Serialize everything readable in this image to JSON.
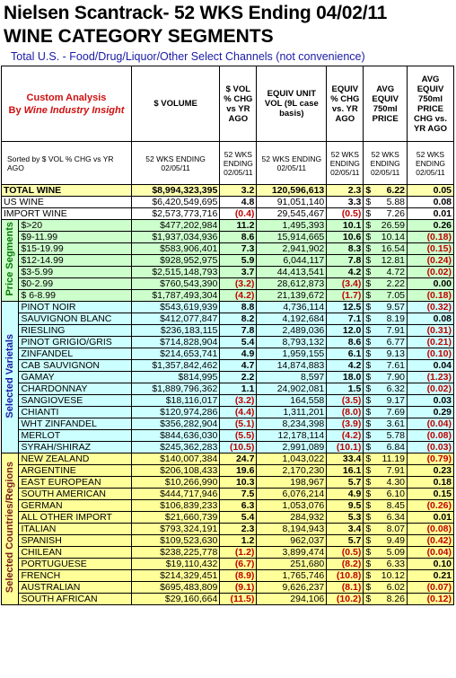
{
  "title": "Nielsen Scantrack- 52 WKS Ending 04/02/11",
  "subtitle": "WINE CATEGORY SEGMENTS",
  "channels": "Total U.S. - Food/Drug/Liquor/Other Select Channels (not convenience)",
  "header": {
    "custom_line1": "Custom Analysis",
    "custom_line2": "By",
    "custom_brand": "Wine Industry Insight",
    "col_volume": "$ VOLUME",
    "col_pct_chg": "$ VOL % CHG vs YR AGO",
    "col_unit_vol": "EQUIV UNIT VOL (9L case basis)",
    "col_unit_chg": "EQUIV % CHG vs. YR AGO",
    "col_price": "AVG EQUIV 750ml PRICE",
    "col_price_chg": "AVG EQUIV 750ml PRICE CHG vs. YR AGO",
    "sort_note": "Sorted by $ VOL % CHG vs YR AGO",
    "period_a": "52 WKS ENDING 02/05/11",
    "period_b": "52 WKS ENDING 02/05/11",
    "period_c": "52 WKS ENDING 02/05/11",
    "period_d": "52 WKS ENDING 02/05/11",
    "period_e": "52 WKS ENDING 02/05/11",
    "period_f": "52 WKS ENDING 02/05/11",
    "dollar": "$"
  },
  "sections": {
    "price": "Price Segments",
    "varietal": "Selected Varietals",
    "country": "Selected Countries/Regions"
  },
  "total": {
    "name": "TOTAL  WINE",
    "vol": "$8,994,323,395",
    "pct": "3.2",
    "unit": "120,596,613",
    "uchg": "2.3",
    "price": "6.22",
    "pchg": "0.05"
  },
  "domestic": [
    {
      "name": "US  WINE",
      "vol": "$6,420,549,695",
      "pct": "4.8",
      "unit": "91,051,140",
      "uchg": "3.3",
      "price": "5.88",
      "pchg": "0.08"
    },
    {
      "name": "IMPORT  WINE",
      "vol": "$2,573,773,716",
      "pct": "(0.4)",
      "unit": "29,545,467",
      "uchg": "(0.5)",
      "price": "7.26",
      "pchg": "0.01"
    }
  ],
  "price_rows": [
    {
      "name": "$>20",
      "vol": "$477,202,984",
      "pct": "11.2",
      "unit": "1,495,393",
      "uchg": "10.1",
      "price": "26.59",
      "pchg": "0.26"
    },
    {
      "name": "$9-11.99",
      "vol": "$1,937,034,936",
      "pct": "8.6",
      "unit": "15,914,665",
      "uchg": "10.6",
      "price": "10.14",
      "pchg": "(0.18)"
    },
    {
      "name": "$15-19.99",
      "vol": "$583,906,401",
      "pct": "7.3",
      "unit": "2,941,902",
      "uchg": "8.3",
      "price": "16.54",
      "pchg": "(0.15)"
    },
    {
      "name": "$12-14.99",
      "vol": "$928,952,975",
      "pct": "5.9",
      "unit": "6,044,117",
      "uchg": "7.8",
      "price": "12.81",
      "pchg": "(0.24)"
    },
    {
      "name": "$3-5.99",
      "vol": "$2,515,148,793",
      "pct": "3.7",
      "unit": "44,413,541",
      "uchg": "4.2",
      "price": "4.72",
      "pchg": "(0.02)"
    },
    {
      "name": "$0-2.99",
      "vol": "$760,543,390",
      "pct": "(3.2)",
      "unit": "28,612,873",
      "uchg": "(3.4)",
      "price": "2.22",
      "pchg": "0.00"
    },
    {
      "name": "$ 6-8.99",
      "vol": "$1,787,493,304",
      "pct": "(4.2)",
      "unit": "21,139,672",
      "uchg": "(1.7)",
      "price": "7.05",
      "pchg": "(0.18)"
    }
  ],
  "varietal_rows": [
    {
      "name": "PINOT NOIR",
      "vol": "$543,619,939",
      "pct": "8.8",
      "unit": "4,736,114",
      "uchg": "12.5",
      "price": "9.57",
      "pchg": "(0.32)"
    },
    {
      "name": "SAUVIGNON BLANC",
      "vol": "$412,077,847",
      "pct": "8.2",
      "unit": "4,192,684",
      "uchg": "7.1",
      "price": "8.19",
      "pchg": "0.08"
    },
    {
      "name": "RIESLING",
      "vol": "$236,183,115",
      "pct": "7.8",
      "unit": "2,489,036",
      "uchg": "12.0",
      "price": "7.91",
      "pchg": "(0.31)"
    },
    {
      "name": "PINOT GRIGIO/GRIS",
      "vol": "$714,828,904",
      "pct": "5.4",
      "unit": "8,793,132",
      "uchg": "8.6",
      "price": "6.77",
      "pchg": "(0.21)"
    },
    {
      "name": "ZINFANDEL",
      "vol": "$214,653,741",
      "pct": "4.9",
      "unit": "1,959,155",
      "uchg": "6.1",
      "price": "9.13",
      "pchg": "(0.10)"
    },
    {
      "name": "CAB SAUVIGNON",
      "vol": "$1,357,842,462",
      "pct": "4.7",
      "unit": "14,874,883",
      "uchg": "4.2",
      "price": "7.61",
      "pchg": "0.04"
    },
    {
      "name": "GAMAY",
      "vol": "$814,995",
      "pct": "2.2",
      "unit": "8,597",
      "uchg": "18.0",
      "price": "7.90",
      "pchg": "(1.23)"
    },
    {
      "name": "CHARDONNAY",
      "vol": "$1,889,796,362",
      "pct": "1.1",
      "unit": "24,902,081",
      "uchg": "1.5",
      "price": "6.32",
      "pchg": "(0.02)"
    },
    {
      "name": "SANGIOVESE",
      "vol": "$18,116,017",
      "pct": "(3.2)",
      "unit": "164,558",
      "uchg": "(3.5)",
      "price": "9.17",
      "pchg": "0.03"
    },
    {
      "name": "CHIANTI",
      "vol": "$120,974,286",
      "pct": "(4.4)",
      "unit": "1,311,201",
      "uchg": "(8.0)",
      "price": "7.69",
      "pchg": "0.29"
    },
    {
      "name": "WHT ZINFANDEL",
      "vol": "$356,282,904",
      "pct": "(5.1)",
      "unit": "8,234,398",
      "uchg": "(3.9)",
      "price": "3.61",
      "pchg": "(0.04)"
    },
    {
      "name": "MERLOT",
      "vol": "$844,636,030",
      "pct": "(5.5)",
      "unit": "12,178,114",
      "uchg": "(4.2)",
      "price": "5.78",
      "pchg": "(0.08)"
    },
    {
      "name": "SYRAH/SHIRAZ",
      "vol": "$245,362,283",
      "pct": "(10.5)",
      "unit": "2,991,089",
      "uchg": "(10.1)",
      "price": "6.84",
      "pchg": "(0.03)"
    }
  ],
  "country_rows": [
    {
      "name": "NEW ZEALAND",
      "vol": "$140,007,384",
      "pct": "24.7",
      "unit": "1,043,022",
      "uchg": "33.4",
      "price": "11.19",
      "pchg": "(0.79)"
    },
    {
      "name": "ARGENTINE",
      "vol": "$206,108,433",
      "pct": "19.6",
      "unit": "2,170,230",
      "uchg": "16.1",
      "price": "7.91",
      "pchg": "0.23"
    },
    {
      "name": "EAST EUROPEAN",
      "vol": "$10,266,990",
      "pct": "10.3",
      "unit": "198,967",
      "uchg": "5.7",
      "price": "4.30",
      "pchg": "0.18"
    },
    {
      "name": "SOUTH AMERICAN",
      "vol": "$444,717,946",
      "pct": "7.5",
      "unit": "6,076,214",
      "uchg": "4.9",
      "price": "6.10",
      "pchg": "0.15"
    },
    {
      "name": "GERMAN",
      "vol": "$106,839,233",
      "pct": "6.3",
      "unit": "1,053,076",
      "uchg": "9.5",
      "price": "8.45",
      "pchg": "(0.26)"
    },
    {
      "name": "ALL OTHER IMPORT",
      "vol": "$21,660,739",
      "pct": "5.4",
      "unit": "284,932",
      "uchg": "5.3",
      "price": "6.34",
      "pchg": "0.01"
    },
    {
      "name": "ITALIAN",
      "vol": "$793,324,191",
      "pct": "2.3",
      "unit": "8,194,943",
      "uchg": "3.4",
      "price": "8.07",
      "pchg": "(0.08)"
    },
    {
      "name": "SPANISH",
      "vol": "$109,523,630",
      "pct": "1.2",
      "unit": "962,037",
      "uchg": "5.7",
      "price": "9.49",
      "pchg": "(0.42)"
    },
    {
      "name": "CHILEAN",
      "vol": "$238,225,778",
      "pct": "(1.2)",
      "unit": "3,899,474",
      "uchg": "(0.5)",
      "price": "5.09",
      "pchg": "(0.04)"
    },
    {
      "name": "PORTUGUESE",
      "vol": "$19,110,432",
      "pct": "(6.7)",
      "unit": "251,680",
      "uchg": "(8.2)",
      "price": "6.33",
      "pchg": "0.10"
    },
    {
      "name": "FRENCH",
      "vol": "$214,329,451",
      "pct": "(8.9)",
      "unit": "1,765,746",
      "uchg": "(10.8)",
      "price": "10.12",
      "pchg": "0.21"
    },
    {
      "name": "AUSTRALIAN",
      "vol": "$695,483,809",
      "pct": "(9.1)",
      "unit": "9,626,237",
      "uchg": "(8.1)",
      "price": "6.02",
      "pchg": "(0.07)"
    },
    {
      "name": "SOUTH AFRICAN",
      "vol": "$29,160,664",
      "pct": "(11.5)",
      "unit": "294,106",
      "uchg": "(10.2)",
      "price": "8.26",
      "pchg": "(0.12)"
    }
  ]
}
